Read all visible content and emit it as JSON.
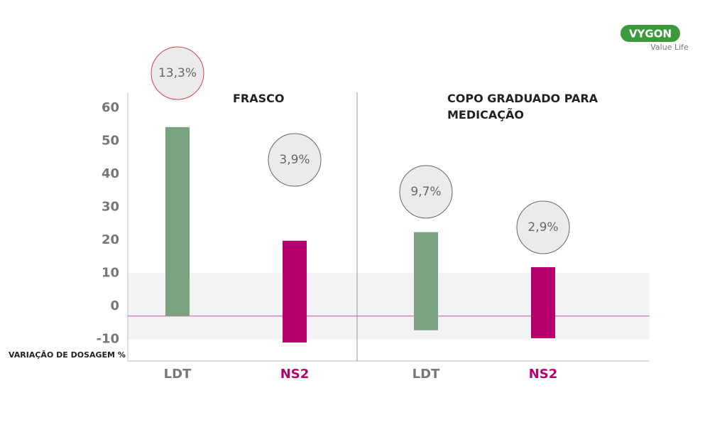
{
  "logo": {
    "brand": "VYGON",
    "tagline": "Value Life"
  },
  "chart_data": {
    "type": "range_bar",
    "y_label": "VARIAÇÃO DE DOSAGEM %",
    "groups": [
      "FRASCO",
      "COPO GRADUADO PARA MEDICAÇÃO"
    ],
    "categories": [
      "LDT",
      "NS2",
      "LDT",
      "NS2"
    ],
    "low": [
      -3,
      -11,
      -7.3,
      -9.7
    ],
    "high": [
      54.2,
      19.8,
      22.4,
      11.8
    ],
    "colors": [
      "#7aa280",
      "#b5006e",
      "#7aa280",
      "#b5006e"
    ],
    "annotations": [
      "13,3%",
      "3,9%",
      "9,7%",
      "2,9%"
    ],
    "reference": -3,
    "band": [
      -10,
      10
    ],
    "ylim": [
      -16.6,
      64.7
    ],
    "yticks": [
      -10,
      0,
      10,
      20,
      30,
      40,
      50,
      60
    ]
  }
}
